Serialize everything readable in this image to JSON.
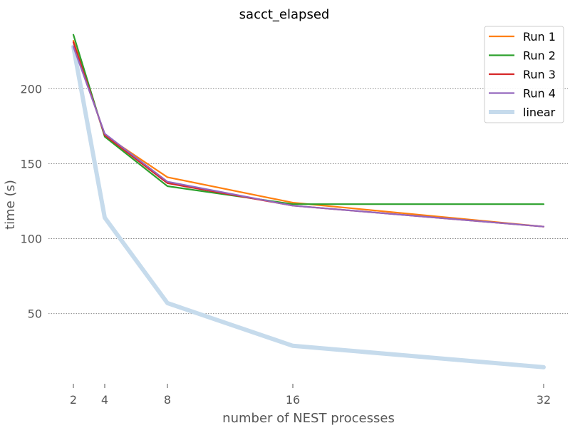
{
  "chart_data": {
    "type": "line",
    "title": "sacct_elapsed",
    "xlabel": "number of NEST processes",
    "ylabel": "time (s)",
    "x": [
      2,
      4,
      8,
      16,
      32
    ],
    "x_ticks": [
      2,
      4,
      8,
      16,
      32
    ],
    "y_ticks": [
      50,
      100,
      150,
      200
    ],
    "xlim": [
      2,
      32
    ],
    "ylim": [
      7,
      243
    ],
    "grid": "horizontal dotted",
    "legend_position": "top-right",
    "series": [
      {
        "name": "Run 1",
        "color": "#ff7f0e",
        "width": 2.2,
        "values": [
          232,
          169,
          141,
          124,
          108
        ]
      },
      {
        "name": "Run 2",
        "color": "#2ca02c",
        "width": 2.2,
        "values": [
          236,
          168,
          135,
          123,
          123
        ]
      },
      {
        "name": "Run 3",
        "color": "#d62728",
        "width": 2.2,
        "values": [
          231,
          169,
          137,
          122,
          108
        ]
      },
      {
        "name": "Run 4",
        "color": "#9467bd",
        "width": 2.2,
        "values": [
          228,
          170,
          138,
          122,
          108
        ]
      },
      {
        "name": "linear",
        "color": "#c6dbec",
        "width": 6,
        "values": [
          228,
          114,
          57,
          28.5,
          14.25
        ]
      }
    ]
  }
}
